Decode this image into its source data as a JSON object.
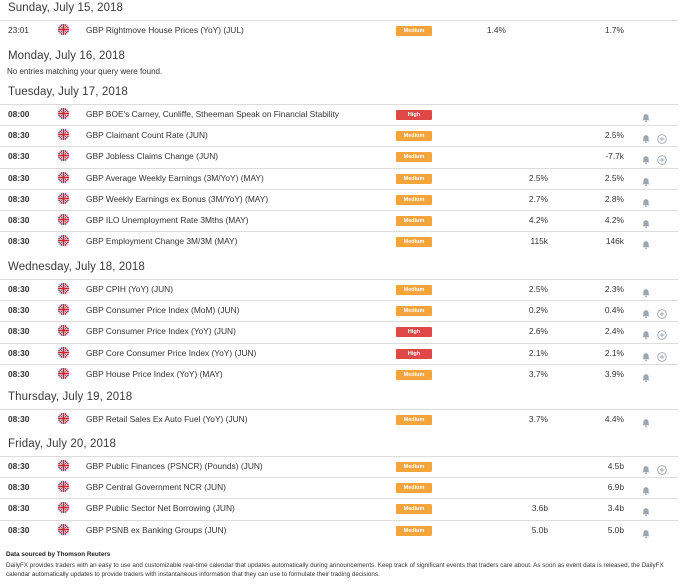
{
  "flag_colors": {
    "red": "#cf1f2e",
    "blue": "#2a3f8f",
    "white": "#ffffff"
  },
  "importance_colors": {
    "Medium": "#f3a43a",
    "High": "#e04848"
  },
  "icons": {
    "country_flag": "uk-flag-icon",
    "alert": "bell-icon",
    "add": "plus-circle-icon"
  },
  "days": [
    {
      "label": "Sunday, July 15, 2018",
      "events": [
        {
          "time": "23:01",
          "bold": false,
          "event": "GBP Rightmove House Prices (YoY) (JUL)",
          "importance": "Medium",
          "actual": "1.4%",
          "actual_col": "wide",
          "forecast": "",
          "previous": "1.7%",
          "bell": false,
          "plus": false
        }
      ]
    },
    {
      "label": "Monday, July 16, 2018",
      "empty_text": "No entries matching your query were found.",
      "events": []
    },
    {
      "label": "Tuesday, July 17, 2018",
      "events": [
        {
          "time": "08:00",
          "bold": true,
          "event": "GBP BOE's Carney, Cunliffe, Stheeman Speak on Financial Stability",
          "importance": "High",
          "actual": "",
          "forecast": "",
          "previous": "",
          "bell": true,
          "plus": false
        },
        {
          "time": "08:30",
          "bold": true,
          "event": "GBP Claimant Count Rate (JUN)",
          "importance": "Medium",
          "actual": "",
          "forecast": "",
          "previous": "2.5%",
          "bell": true,
          "plus": true
        },
        {
          "time": "08:30",
          "bold": true,
          "event": "GBP Jobless Claims Change (JUN)",
          "importance": "Medium",
          "actual": "",
          "forecast": "",
          "previous": "-7.7k",
          "bell": true,
          "plus": true
        },
        {
          "time": "08:30",
          "bold": true,
          "event": "GBP Average Weekly Earnings (3M/YoY) (MAY)",
          "importance": "Medium",
          "actual": "",
          "forecast": "2.5%",
          "previous": "2.5%",
          "bell": true,
          "plus": false
        },
        {
          "time": "08:30",
          "bold": true,
          "event": "GBP Weekly Earnings ex Bonus (3M/YoY) (MAY)",
          "importance": "Medium",
          "actual": "",
          "forecast": "2.7%",
          "previous": "2.8%",
          "bell": true,
          "plus": false
        },
        {
          "time": "08:30",
          "bold": true,
          "event": "GBP ILO Unemployment Rate 3Mths (MAY)",
          "importance": "Medium",
          "actual": "",
          "forecast": "4.2%",
          "previous": "4.2%",
          "bell": true,
          "plus": false
        },
        {
          "time": "08:30",
          "bold": true,
          "event": "GBP Employment Change 3M/3M (MAY)",
          "importance": "Medium",
          "actual": "",
          "forecast": "115k",
          "previous": "146k",
          "bell": true,
          "plus": false
        }
      ]
    },
    {
      "label": "Wednesday, July 18, 2018",
      "events": [
        {
          "time": "08:30",
          "bold": true,
          "event": "GBP CPIH (YoY) (JUN)",
          "importance": "Medium",
          "actual": "",
          "forecast": "2.5%",
          "previous": "2.3%",
          "bell": true,
          "plus": false
        },
        {
          "time": "08:30",
          "bold": true,
          "event": "GBP Consumer Price Index (MoM) (JUN)",
          "importance": "Medium",
          "actual": "",
          "forecast": "0.2%",
          "previous": "0.4%",
          "bell": true,
          "plus": true
        },
        {
          "time": "08:30",
          "bold": true,
          "event": "GBP Consumer Price Index (YoY) (JUN)",
          "importance": "High",
          "actual": "",
          "forecast": "2.6%",
          "previous": "2.4%",
          "bell": true,
          "plus": true
        },
        {
          "time": "08:30",
          "bold": true,
          "event": "GBP Core Consumer Price Index (YoY) (JUN)",
          "importance": "High",
          "actual": "",
          "forecast": "2.1%",
          "previous": "2.1%",
          "bell": true,
          "plus": true
        },
        {
          "time": "08:30",
          "bold": true,
          "event": "GBP House Price Index (YoY) (MAY)",
          "importance": "Medium",
          "actual": "",
          "forecast": "3.7%",
          "previous": "3.9%",
          "bell": true,
          "plus": false
        }
      ]
    },
    {
      "label": "Thursday, July 19, 2018",
      "events": [
        {
          "time": "08:30",
          "bold": true,
          "event": "GBP Retail Sales Ex Auto Fuel (YoY) (JUN)",
          "importance": "Medium",
          "actual": "",
          "forecast": "3.7%",
          "previous": "4.4%",
          "bell": true,
          "plus": false
        }
      ]
    },
    {
      "label": "Friday, July 20, 2018",
      "events": [
        {
          "time": "08:30",
          "bold": true,
          "event": "GBP Public Finances (PSNCR) (Pounds) (JUN)",
          "importance": "Medium",
          "actual": "",
          "forecast": "",
          "previous": "4.5b",
          "bell": true,
          "plus": true
        },
        {
          "time": "08:30",
          "bold": true,
          "event": "GBP Central Government NCR (JUN)",
          "importance": "Medium",
          "actual": "",
          "forecast": "",
          "previous": "6.9b",
          "bell": true,
          "plus": false
        },
        {
          "time": "08:30",
          "bold": true,
          "event": "GBP Public Sector Net Borrowing (JUN)",
          "importance": "Medium",
          "actual": "",
          "forecast": "3.6b",
          "previous": "3.4b",
          "bell": true,
          "plus": false
        },
        {
          "time": "08:30",
          "bold": true,
          "event": "GBP PSNB ex Banking Groups (JUN)",
          "importance": "Medium",
          "actual": "",
          "forecast": "5.0b",
          "previous": "5.0b",
          "bell": true,
          "plus": false
        }
      ]
    }
  ],
  "footer": {
    "source": "Data sourced by Thomson Reuters",
    "disclaimer": "DailyFX provides traders with an easy to use and customizable real-time calendar that updates automatically during announcements. Keep track of significant events that traders care about. As soon as event data is released, the DailyFX calendar automatically updates to provide traders with instantaneous information that they can use to formulate their trading decisions."
  }
}
